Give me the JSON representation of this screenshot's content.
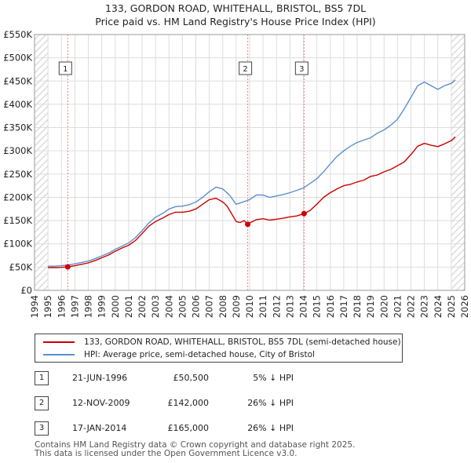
{
  "title_line1": "133, GORDON ROAD, WHITEHALL, BRISTOL, BS5 7DL",
  "title_line2": "Price paid vs. HM Land Registry's House Price Index (HPI)",
  "chart_data": {
    "type": "line",
    "xlim": [
      1994.0,
      2026.0
    ],
    "ylim": [
      0,
      550000
    ],
    "x_ticks": [
      1994,
      1995,
      1996,
      1997,
      1998,
      1999,
      2000,
      2001,
      2002,
      2003,
      2004,
      2005,
      2006,
      2007,
      2008,
      2009,
      2010,
      2011,
      2012,
      2013,
      2014,
      2015,
      2016,
      2017,
      2018,
      2019,
      2020,
      2021,
      2022,
      2023,
      2024,
      2025,
      2026
    ],
    "y_ticks": [
      {
        "value": 0,
        "label": "£0"
      },
      {
        "value": 50000,
        "label": "£50K"
      },
      {
        "value": 100000,
        "label": "£100K"
      },
      {
        "value": 150000,
        "label": "£150K"
      },
      {
        "value": 200000,
        "label": "£200K"
      },
      {
        "value": 250000,
        "label": "£250K"
      },
      {
        "value": 300000,
        "label": "£300K"
      },
      {
        "value": 350000,
        "label": "£350K"
      },
      {
        "value": 400000,
        "label": "£400K"
      },
      {
        "value": 450000,
        "label": "£450K"
      },
      {
        "value": 500000,
        "label": "£500K"
      },
      {
        "value": 550000,
        "label": "£550K"
      }
    ],
    "series": [
      {
        "name": "133, GORDON ROAD, WHITEHALL, BRISTOL, BS5 7DL (semi-detached house)",
        "color": "#cc0000",
        "x": [
          1995.0,
          1995.5,
          1996.0,
          1996.47,
          1997.0,
          1997.5,
          1998.0,
          1998.5,
          1999.0,
          1999.5,
          2000.0,
          2000.5,
          2001.0,
          2001.5,
          2002.0,
          2002.5,
          2003.0,
          2003.5,
          2004.0,
          2004.5,
          2005.0,
          2005.5,
          2006.0,
          2006.5,
          2007.0,
          2007.5,
          2008.0,
          2008.3,
          2008.7,
          2009.0,
          2009.3,
          2009.6,
          2009.86,
          2010.0,
          2010.5,
          2011.0,
          2011.5,
          2012.0,
          2012.5,
          2013.0,
          2013.5,
          2014.05,
          2014.5,
          2015.0,
          2015.5,
          2016.0,
          2016.5,
          2017.0,
          2017.5,
          2018.0,
          2018.5,
          2019.0,
          2019.5,
          2020.0,
          2020.5,
          2021.0,
          2021.5,
          2022.0,
          2022.5,
          2023.0,
          2023.5,
          2024.0,
          2024.5,
          2025.0,
          2025.3
        ],
        "y": [
          49000,
          49000,
          49500,
          50500,
          53000,
          56000,
          59000,
          64000,
          70000,
          76000,
          84000,
          91000,
          97000,
          107000,
          122000,
          138000,
          148000,
          155000,
          163000,
          168000,
          168000,
          170000,
          175000,
          185000,
          195000,
          198000,
          190000,
          182000,
          163000,
          148000,
          146000,
          150000,
          142000,
          145000,
          152000,
          154000,
          151000,
          153000,
          155000,
          158000,
          160000,
          165000,
          172000,
          185000,
          200000,
          210000,
          218000,
          225000,
          228000,
          233000,
          237000,
          245000,
          248000,
          255000,
          260000,
          268000,
          276000,
          292000,
          310000,
          316000,
          312000,
          309000,
          315000,
          322000,
          330000
        ]
      },
      {
        "name": "HPI: Average price, semi-detached house, City of Bristol",
        "color": "#5b8fcc",
        "x": [
          1995.0,
          1995.5,
          1996.0,
          1996.5,
          1997.0,
          1997.5,
          1998.0,
          1998.5,
          1999.0,
          1999.5,
          2000.0,
          2000.5,
          2001.0,
          2001.5,
          2002.0,
          2002.5,
          2003.0,
          2003.5,
          2004.0,
          2004.5,
          2005.0,
          2005.5,
          2006.0,
          2006.5,
          2007.0,
          2007.5,
          2008.0,
          2008.5,
          2009.0,
          2009.5,
          2010.0,
          2010.5,
          2011.0,
          2011.5,
          2012.0,
          2012.5,
          2013.0,
          2013.5,
          2014.0,
          2014.5,
          2015.0,
          2015.5,
          2016.0,
          2016.5,
          2017.0,
          2017.5,
          2018.0,
          2018.5,
          2019.0,
          2019.5,
          2020.0,
          2020.5,
          2021.0,
          2021.5,
          2022.0,
          2022.5,
          2023.0,
          2023.5,
          2024.0,
          2024.5,
          2025.0,
          2025.3
        ],
        "y": [
          52000,
          52000,
          53000,
          54500,
          57000,
          60000,
          63000,
          68000,
          74000,
          80000,
          88000,
          95000,
          102000,
          113000,
          128000,
          145000,
          157000,
          165000,
          175000,
          180000,
          181000,
          184000,
          190000,
          200000,
          212000,
          222000,
          218000,
          205000,
          185000,
          190000,
          195000,
          205000,
          205000,
          200000,
          203000,
          206000,
          210000,
          215000,
          220000,
          230000,
          240000,
          255000,
          272000,
          288000,
          300000,
          310000,
          318000,
          323000,
          328000,
          338000,
          345000,
          355000,
          368000,
          390000,
          415000,
          440000,
          448000,
          440000,
          432000,
          440000,
          445000,
          452000
        ]
      }
    ],
    "transactions": [
      {
        "label": "1",
        "date": "21-JUN-1996",
        "x": 1996.47,
        "price": 50500,
        "price_label": "£50,500",
        "hpi": "5% ↓ HPI"
      },
      {
        "label": "2",
        "date": "12-NOV-2009",
        "x": 2009.86,
        "price": 142000,
        "price_label": "£142,000",
        "hpi": "26% ↓ HPI"
      },
      {
        "label": "3",
        "date": "17-JAN-2014",
        "x": 2014.05,
        "price": 165000,
        "price_label": "£165,000",
        "hpi": "26% ↓ HPI"
      }
    ],
    "colors": {
      "grid": "#dddddd",
      "plot_bg": "#ffffff",
      "hatch": "#e6e6e6",
      "marker_line": "#e88080"
    }
  },
  "legend": {
    "property": "133, GORDON ROAD, WHITEHALL, BRISTOL, BS5 7DL (semi-detached house)",
    "hpi": "HPI: Average price, semi-detached house, City of Bristol"
  },
  "footer": {
    "line1": "Contains HM Land Registry data © Crown copyright and database right 2025.",
    "line2": "This data is licensed under the Open Government Licence v3.0."
  }
}
